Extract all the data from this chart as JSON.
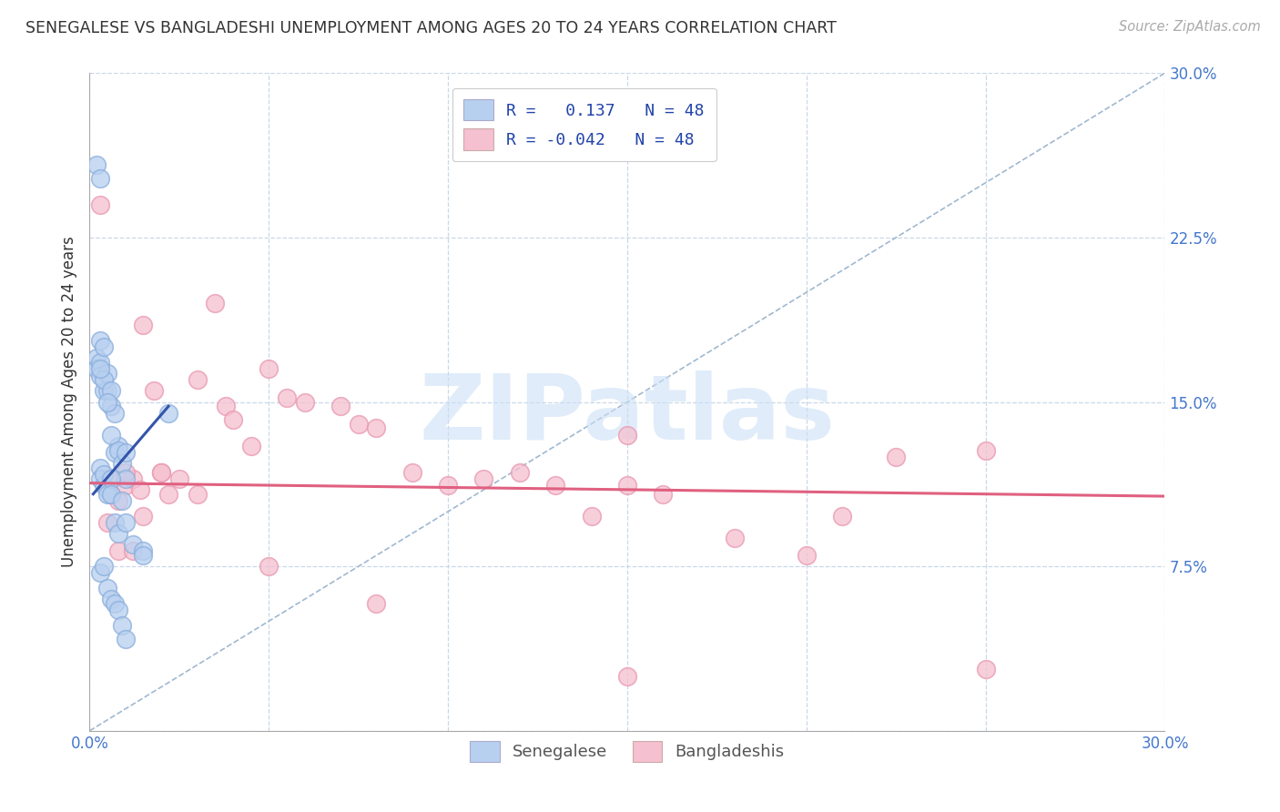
{
  "title": "SENEGALESE VS BANGLADESHI UNEMPLOYMENT AMONG AGES 20 TO 24 YEARS CORRELATION CHART",
  "source": "Source: ZipAtlas.com",
  "ylabel": "Unemployment Among Ages 20 to 24 years",
  "xlim": [
    0.0,
    0.3
  ],
  "ylim": [
    0.0,
    0.3
  ],
  "xtick_positions": [
    0.0,
    0.05,
    0.1,
    0.15,
    0.2,
    0.25,
    0.3
  ],
  "xtick_labels": [
    "0.0%",
    "",
    "",
    "",
    "",
    "",
    "30.0%"
  ],
  "ytick_positions": [
    0.0,
    0.075,
    0.15,
    0.225,
    0.3
  ],
  "ytick_labels": [
    "",
    "7.5%",
    "15.0%",
    "22.5%",
    "30.0%"
  ],
  "background_color": "#ffffff",
  "grid_color": "#c8d8e8",
  "diagonal_color": "#a0b8d0",
  "sen_color": "#b8d0f0",
  "sen_edge": "#8aaedc",
  "sen_line_color": "#3355aa",
  "ban_color": "#f5c0d0",
  "ban_edge": "#e898b0",
  "ban_line_color": "#e06080",
  "sen_trend_x": [
    0.001,
    0.022
  ],
  "sen_trend_y": [
    0.108,
    0.148
  ],
  "ban_trend_x": [
    0.0,
    0.3
  ],
  "ban_trend_y": [
    0.113,
    0.107
  ],
  "sen_x": [
    0.002,
    0.003,
    0.002,
    0.002,
    0.003,
    0.003,
    0.004,
    0.004,
    0.003,
    0.005,
    0.005,
    0.004,
    0.003,
    0.006,
    0.007,
    0.006,
    0.005,
    0.008,
    0.007,
    0.006,
    0.008,
    0.009,
    0.01,
    0.01,
    0.003,
    0.003,
    0.004,
    0.004,
    0.005,
    0.005,
    0.006,
    0.006,
    0.007,
    0.008,
    0.009,
    0.01,
    0.012,
    0.015,
    0.003,
    0.004,
    0.005,
    0.006,
    0.007,
    0.008,
    0.009,
    0.01,
    0.015,
    0.022
  ],
  "sen_y": [
    0.258,
    0.252,
    0.17,
    0.165,
    0.178,
    0.168,
    0.175,
    0.155,
    0.162,
    0.163,
    0.155,
    0.16,
    0.165,
    0.148,
    0.145,
    0.155,
    0.15,
    0.13,
    0.127,
    0.135,
    0.128,
    0.122,
    0.127,
    0.115,
    0.12,
    0.115,
    0.112,
    0.117,
    0.11,
    0.108,
    0.115,
    0.108,
    0.095,
    0.09,
    0.105,
    0.095,
    0.085,
    0.082,
    0.072,
    0.075,
    0.065,
    0.06,
    0.058,
    0.055,
    0.048,
    0.042,
    0.08,
    0.145
  ],
  "ban_x": [
    0.003,
    0.005,
    0.006,
    0.008,
    0.01,
    0.012,
    0.014,
    0.015,
    0.018,
    0.02,
    0.022,
    0.025,
    0.03,
    0.035,
    0.038,
    0.04,
    0.045,
    0.05,
    0.055,
    0.06,
    0.07,
    0.075,
    0.08,
    0.09,
    0.1,
    0.11,
    0.12,
    0.13,
    0.14,
    0.15,
    0.16,
    0.18,
    0.2,
    0.21,
    0.225,
    0.25,
    0.01,
    0.015,
    0.02,
    0.03,
    0.05,
    0.08,
    0.15,
    0.25,
    0.005,
    0.008,
    0.012,
    0.15
  ],
  "ban_y": [
    0.24,
    0.115,
    0.108,
    0.105,
    0.112,
    0.115,
    0.11,
    0.185,
    0.155,
    0.118,
    0.108,
    0.115,
    0.16,
    0.195,
    0.148,
    0.142,
    0.13,
    0.165,
    0.152,
    0.15,
    0.148,
    0.14,
    0.138,
    0.118,
    0.112,
    0.115,
    0.118,
    0.112,
    0.098,
    0.112,
    0.108,
    0.088,
    0.08,
    0.098,
    0.125,
    0.128,
    0.118,
    0.098,
    0.118,
    0.108,
    0.075,
    0.058,
    0.025,
    0.028,
    0.095,
    0.082,
    0.082,
    0.135
  ],
  "legend_R_sen": "R =   0.137",
  "legend_N_sen": "N = 48",
  "legend_R_ban": "R = -0.042",
  "legend_N_ban": "N = 48",
  "watermark_text": "ZIPatlas",
  "watermark_color": "#cce0f5",
  "watermark_alpha": 0.6
}
